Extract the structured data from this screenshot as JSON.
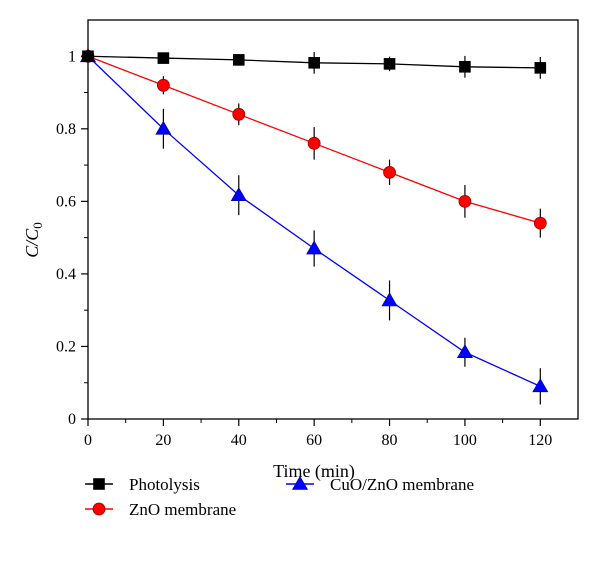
{
  "chart_data": {
    "type": "line",
    "xlabel": "Time (min)",
    "ylabel": "C/C",
    "ylabel_subscript": "0",
    "xlim": [
      0,
      130
    ],
    "ylim": [
      0,
      1.1
    ],
    "x_ticks": [
      0,
      20,
      40,
      60,
      80,
      100,
      120
    ],
    "y_ticks": [
      0,
      0.2,
      0.4,
      0.6,
      0.8,
      1
    ],
    "y_tick_labels": [
      "0",
      "0.2",
      "0.4",
      "0.6",
      "0.8",
      "1"
    ],
    "grid": false,
    "legend_position": "bottom",
    "series": [
      {
        "name": "Photolysis",
        "marker": "square",
        "color": "#000000",
        "x": [
          0,
          20,
          40,
          60,
          80,
          100,
          120
        ],
        "y": [
          1.0,
          0.995,
          0.99,
          0.982,
          0.979,
          0.971,
          0.968
        ],
        "error": [
          0,
          0.015,
          0.015,
          0.03,
          0.02,
          0.03,
          0.03
        ]
      },
      {
        "name": "ZnO membrane",
        "marker": "circle",
        "color": "#ff0000",
        "x": [
          0,
          20,
          40,
          60,
          80,
          100,
          120
        ],
        "y": [
          1.0,
          0.92,
          0.84,
          0.76,
          0.68,
          0.6,
          0.54
        ],
        "error": [
          0,
          0.025,
          0.03,
          0.045,
          0.035,
          0.045,
          0.04
        ]
      },
      {
        "name": "CuO/ZnO membrane",
        "marker": "triangle",
        "color": "#0000ff",
        "x": [
          0,
          20,
          40,
          60,
          80,
          100,
          120
        ],
        "y": [
          1.0,
          0.8,
          0.617,
          0.47,
          0.327,
          0.184,
          0.09
        ],
        "error": [
          0,
          0.055,
          0.055,
          0.05,
          0.055,
          0.04,
          0.05
        ]
      }
    ]
  }
}
